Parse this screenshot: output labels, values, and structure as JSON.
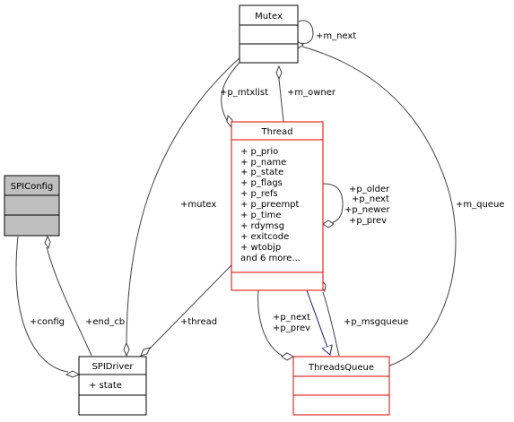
{
  "classes": {
    "mutex": {
      "title": "Mutex"
    },
    "thread": {
      "title": "Thread",
      "members": [
        "+ p_prio",
        "+ p_name",
        "+ p_state",
        "+ p_flags",
        "+ p_refs",
        "+ p_preempt",
        "+ p_time",
        "+ rdymsg",
        "+ exitcode",
        "+ wtobjp",
        "and 6 more..."
      ]
    },
    "spiconfig": {
      "title": "SPIConfig"
    },
    "spidriver": {
      "title": "SPIDriver",
      "members": [
        "+ state"
      ]
    },
    "threadsqueue": {
      "title": "ThreadsQueue"
    }
  },
  "edges": {
    "m_next": "+m_next",
    "p_mtxlist": "+p_mtxlist",
    "m_owner": "+m_owner",
    "mutex": "+mutex",
    "m_queue": "+m_queue",
    "thread": "+thread",
    "config": "+config",
    "end_cb": "+end_cb",
    "p_older": "+p_older",
    "p_next_self": "+p_next",
    "p_newer": "+p_newer",
    "p_prev_self": "+p_prev",
    "p_next_q": "+p_next",
    "p_prev_q": "+p_prev",
    "p_msgqueue": "+p_msgqueue"
  },
  "colors": {
    "edge": "#404040",
    "inherit": "#191970",
    "highlight": "#e00000",
    "header": "#bfbfbf"
  }
}
